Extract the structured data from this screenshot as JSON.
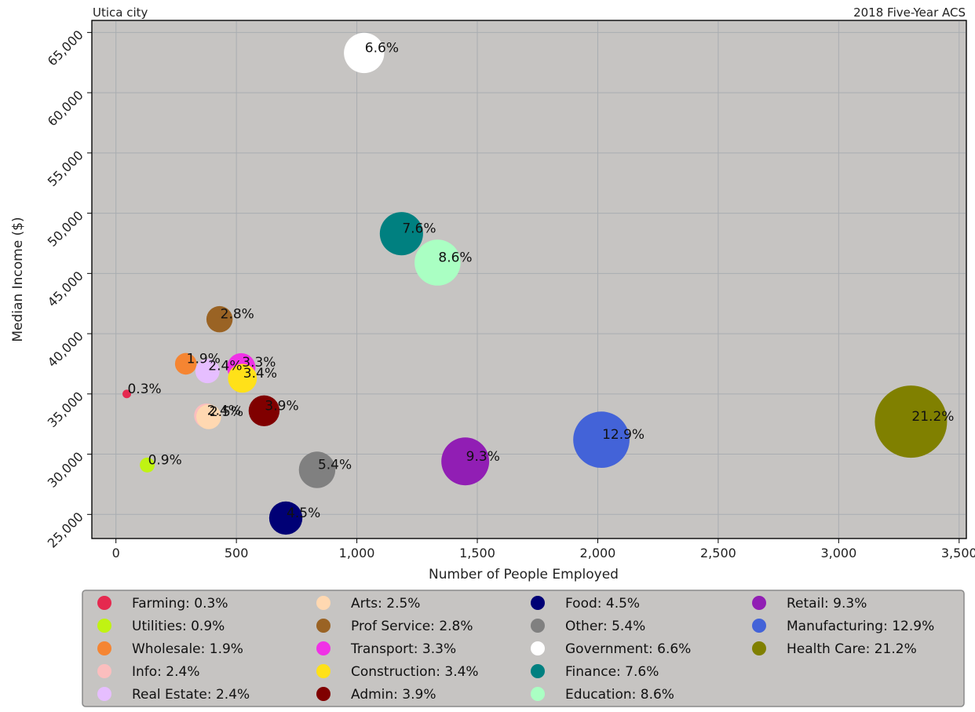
{
  "header": {
    "left_title": "Utica city",
    "right_title": "2018 Five-Year ACS"
  },
  "colors": {
    "plot_background": "#c6c4c2",
    "grid": "#a9adb1",
    "legend_background": "#c6c4c2"
  },
  "chart_data": {
    "type": "scatter",
    "title": "",
    "subtitle_left": "Utica city",
    "subtitle_right": "2018 Five-Year ACS",
    "xlabel": "Number of People Employed",
    "ylabel": "Median Income ($)",
    "xlim": [
      -100,
      3530
    ],
    "ylim": [
      23000,
      66000
    ],
    "grid": true,
    "legend_placement": "bottom",
    "x_ticks": [
      0,
      500,
      1000,
      1500,
      2000,
      2500,
      3000,
      3500
    ],
    "x_tick_labels": [
      "0",
      "500",
      "1,000",
      "1,500",
      "2,000",
      "2,500",
      "3,000",
      "3,500"
    ],
    "y_ticks": [
      25000,
      30000,
      35000,
      40000,
      45000,
      50000,
      55000,
      60000,
      65000
    ],
    "y_tick_labels": [
      "25,000",
      "30,000",
      "35,000",
      "40,000",
      "45,000",
      "50,000",
      "55,000",
      "60,000",
      "65,000"
    ],
    "points": [
      {
        "name": "Farming",
        "legend": "Farming: 0.3%",
        "label": "0.3%",
        "x": 45,
        "y": 35000,
        "share": 0.3,
        "color": "#e5294f"
      },
      {
        "name": "Utilities",
        "legend": "Utilities: 0.9%",
        "label": "0.9%",
        "x": 130,
        "y": 29100,
        "share": 0.9,
        "color": "#c0f312"
      },
      {
        "name": "Wholesale",
        "legend": "Wholesale: 1.9%",
        "label": "1.9%",
        "x": 290,
        "y": 37500,
        "share": 1.9,
        "color": "#f58532"
      },
      {
        "name": "Info",
        "legend": "Info: 2.4%",
        "label": "2.4%",
        "x": 375,
        "y": 33200,
        "share": 2.4,
        "color": "#fbbebe"
      },
      {
        "name": "Real Estate",
        "legend": "Real Estate: 2.4%",
        "label": "2.4%",
        "x": 380,
        "y": 36900,
        "share": 2.4,
        "color": "#e6beff"
      },
      {
        "name": "Arts",
        "legend": "Arts: 2.5%",
        "label": "2.5%",
        "x": 385,
        "y": 33100,
        "share": 2.5,
        "color": "#ffd8b1"
      },
      {
        "name": "Prof Service",
        "legend": "Prof Service: 2.8%",
        "label": "2.8%",
        "x": 430,
        "y": 41200,
        "share": 2.8,
        "color": "#9a6324"
      },
      {
        "name": "Transport",
        "legend": "Transport: 3.3%",
        "label": "3.3%",
        "x": 520,
        "y": 37200,
        "share": 3.3,
        "color": "#f032e6"
      },
      {
        "name": "Construction",
        "legend": "Construction: 3.4%",
        "label": "3.4%",
        "x": 525,
        "y": 36300,
        "share": 3.4,
        "color": "#ffe119"
      },
      {
        "name": "Admin",
        "legend": "Admin: 3.9%",
        "label": "3.9%",
        "x": 615,
        "y": 33600,
        "share": 3.9,
        "color": "#800000"
      },
      {
        "name": "Food",
        "legend": "Food: 4.5%",
        "label": "4.5%",
        "x": 705,
        "y": 24700,
        "share": 4.5,
        "color": "#000075"
      },
      {
        "name": "Other",
        "legend": "Other: 5.4%",
        "label": "5.4%",
        "x": 835,
        "y": 28700,
        "share": 5.4,
        "color": "#808080"
      },
      {
        "name": "Government",
        "legend": "Government: 6.6%",
        "label": "6.6%",
        "x": 1030,
        "y": 63300,
        "share": 6.6,
        "color": "#ffffff"
      },
      {
        "name": "Finance",
        "legend": "Finance: 7.6%",
        "label": "7.6%",
        "x": 1185,
        "y": 48300,
        "share": 7.6,
        "color": "#008080"
      },
      {
        "name": "Education",
        "legend": "Education: 8.6%",
        "label": "8.6%",
        "x": 1335,
        "y": 45900,
        "share": 8.6,
        "color": "#aaffc3"
      },
      {
        "name": "Retail",
        "legend": "Retail: 9.3%",
        "label": "9.3%",
        "x": 1450,
        "y": 29400,
        "share": 9.3,
        "color": "#911eb4"
      },
      {
        "name": "Manufacturing",
        "legend": "Manufacturing: 12.9%",
        "label": "12.9%",
        "x": 2015,
        "y": 31200,
        "share": 12.9,
        "color": "#4363d8"
      },
      {
        "name": "Health Care",
        "legend": "Health Care: 21.2%",
        "label": "21.2%",
        "x": 3300,
        "y": 32700,
        "share": 21.2,
        "color": "#808000"
      }
    ]
  }
}
